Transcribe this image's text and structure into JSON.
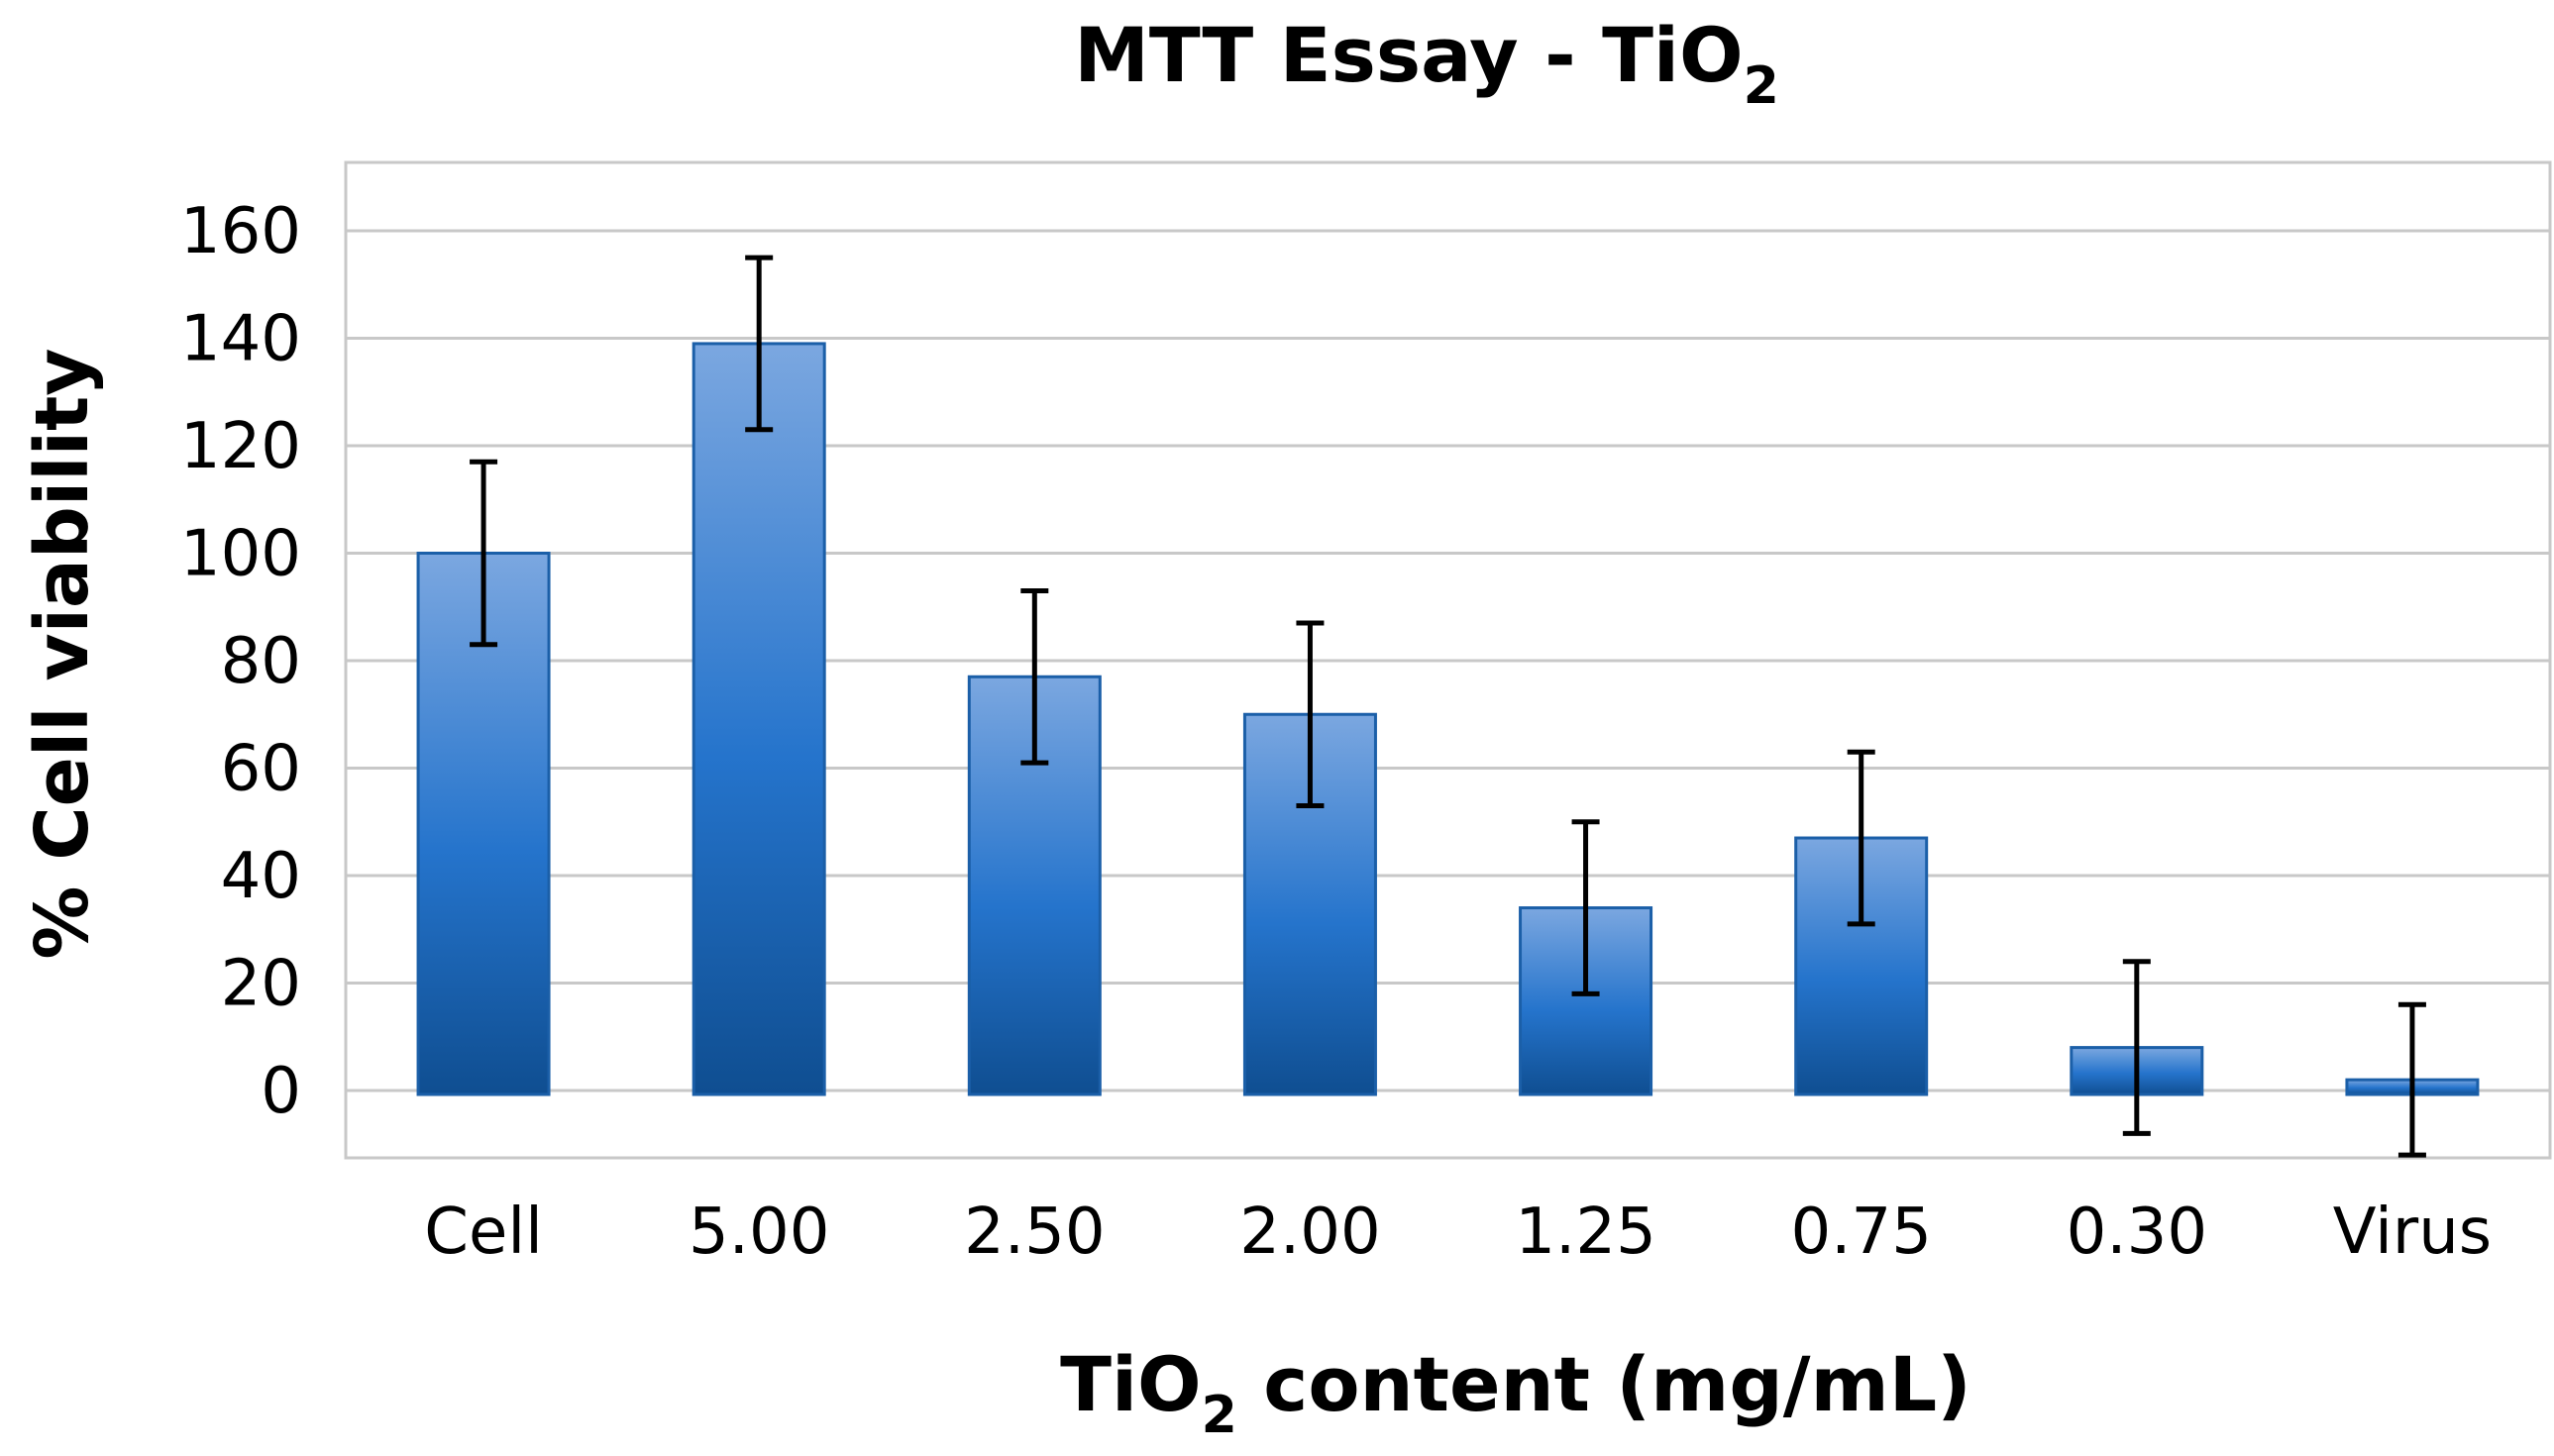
{
  "chart_data": {
    "type": "bar",
    "title": {
      "main": "MTT Essay - TiO",
      "subscript": "2"
    },
    "xlabel": {
      "prefix": "TiO",
      "subscript": "2",
      "suffix": " content (mg/mL)"
    },
    "ylabel": "% Cell viability",
    "categories": [
      "Cell",
      "5.00",
      "2.50",
      "2.00",
      "1.25",
      "0.75",
      "0.30",
      "Virus"
    ],
    "series": [
      {
        "values": [
          100,
          139,
          77,
          70,
          34,
          47,
          8,
          2
        ],
        "errors": [
          17,
          16,
          16,
          17,
          16,
          16,
          16,
          14
        ]
      }
    ],
    "ylim": [
      -13,
      175
    ],
    "yticks": [
      0,
      20,
      40,
      60,
      80,
      100,
      120,
      140,
      160
    ],
    "grid": true,
    "legend": "none",
    "colors": {
      "bar_top": "#7BA7E0",
      "bar_mid": "#2574CC",
      "bar_bottom": "#0F4E91",
      "bar_stroke": "#1B5FA8",
      "grid": "#C8C8C8",
      "frame": "#C8C8C8",
      "error_bar": "#000000"
    }
  }
}
